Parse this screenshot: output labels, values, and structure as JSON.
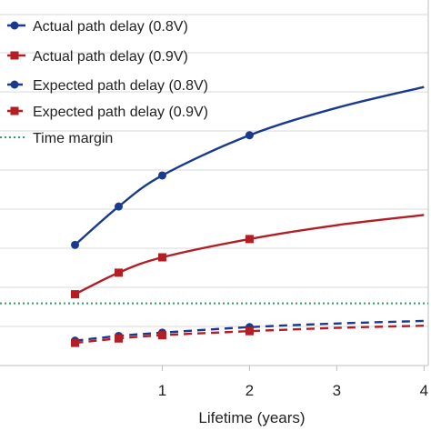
{
  "chart_data": {
    "type": "line",
    "title": "",
    "xlabel": "Lifetime (years)",
    "ylabel": "",
    "xlim": [
      -0.86,
      4.08
    ],
    "ylim": [
      0,
      1
    ],
    "x_ticks": [
      1,
      2,
      3,
      4
    ],
    "x_tick_labels": [
      "1",
      "2",
      "3",
      "4"
    ],
    "grid": "horizontal",
    "legend_position": "top-left",
    "series": [
      {
        "name": "Actual path delay (0.8V)",
        "color": "#1a3a8f",
        "line_style": "solid",
        "marker": "circle",
        "x": [
          0,
          0.5,
          1,
          2,
          3,
          4
        ],
        "y": [
          0.33,
          0.435,
          0.52,
          0.63,
          0.705,
          0.762
        ],
        "marker_x": [
          0,
          0.5,
          1,
          2
        ]
      },
      {
        "name": "Actual path delay (0.9V)",
        "color": "#b31d24",
        "line_style": "solid",
        "marker": "square",
        "x": [
          0,
          0.5,
          1,
          2,
          3,
          4
        ],
        "y": [
          0.195,
          0.254,
          0.296,
          0.346,
          0.384,
          0.412
        ],
        "marker_x": [
          0,
          0.5,
          1,
          2
        ]
      },
      {
        "name": "Expected path delay (0.8V)",
        "color": "#1a3a8f",
        "line_style": "dashed",
        "marker": "circle",
        "x": [
          0,
          0.5,
          1,
          2,
          3,
          4
        ],
        "y": [
          0.068,
          0.081,
          0.09,
          0.105,
          0.115,
          0.122
        ],
        "marker_x": [
          0,
          0.5,
          1,
          2
        ]
      },
      {
        "name": "Expected path delay (0.9V)",
        "color": "#b31d24",
        "line_style": "dashed",
        "marker": "square",
        "x": [
          0,
          0.5,
          1,
          2,
          3,
          4
        ],
        "y": [
          0.062,
          0.074,
          0.083,
          0.094,
          0.103,
          0.109
        ],
        "marker_x": [
          0,
          0.5,
          1,
          2
        ]
      },
      {
        "name": "Time margin",
        "color": "#2aa35c",
        "line_style": "dotted",
        "marker": "none",
        "x": [
          -0.86,
          4.08
        ],
        "y": [
          0.17,
          0.17
        ]
      }
    ]
  }
}
